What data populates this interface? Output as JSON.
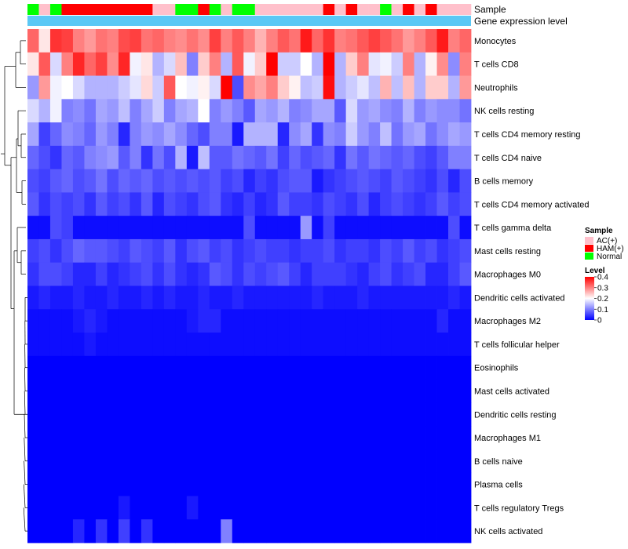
{
  "chart_data": {
    "type": "heatmap",
    "annotation_labels": {
      "sample": "Sample",
      "gene_expression": "Gene expression level"
    },
    "rows": [
      "Monocytes",
      "T cells CD8",
      "Neutrophils",
      "NK cells resting",
      "T cells CD4 memory resting",
      "T cells CD4 naive",
      "B cells memory",
      "T cells CD4 memory activated",
      "T cells gamma delta",
      "Mast cells resting",
      "Macrophages M0",
      "Dendritic cells activated",
      "Macrophages M2",
      "T cells follicular helper",
      "Eosinophils",
      "Mast cells activated",
      "Dendritic cells resting",
      "Macrophages M1",
      "B cells naive",
      "Plasma cells",
      "T cells regulatory  Tregs",
      "NK cells activated"
    ],
    "sample_groups": [
      "N",
      "A",
      "N",
      "H",
      "H",
      "H",
      "H",
      "H",
      "H",
      "H",
      "H",
      "A",
      "A",
      "N",
      "N",
      "H",
      "N",
      "A",
      "N",
      "N",
      "A",
      "A",
      "A",
      "A",
      "A",
      "A",
      "H",
      "A",
      "H",
      "A",
      "A",
      "N",
      "A",
      "H",
      "A",
      "H",
      "A",
      "A",
      "A"
    ],
    "values": [
      [
        0.32,
        0.22,
        0.36,
        0.35,
        0.3,
        0.28,
        0.31,
        0.3,
        0.34,
        0.35,
        0.31,
        0.32,
        0.3,
        0.29,
        0.31,
        0.29,
        0.35,
        0.3,
        0.33,
        0.3,
        0.26,
        0.3,
        0.33,
        0.31,
        0.38,
        0.32,
        0.36,
        0.3,
        0.31,
        0.33,
        0.35,
        0.33,
        0.31,
        0.28,
        0.3,
        0.33,
        0.38,
        0.3,
        0.32
      ],
      [
        0.22,
        0.33,
        0.17,
        0.3,
        0.37,
        0.32,
        0.35,
        0.29,
        0.37,
        0.19,
        0.22,
        0.14,
        0.17,
        0.25,
        0.1,
        0.24,
        0.3,
        0.14,
        0.33,
        0.19,
        0.24,
        0.4,
        0.16,
        0.16,
        0.2,
        0.14,
        0.41,
        0.14,
        0.24,
        0.3,
        0.18,
        0.19,
        0.16,
        0.3,
        0.14,
        0.21,
        0.29,
        0.11,
        0.3
      ],
      [
        0.12,
        0.28,
        0.19,
        0.2,
        0.17,
        0.14,
        0.14,
        0.14,
        0.16,
        0.18,
        0.23,
        0.16,
        0.33,
        0.2,
        0.19,
        0.21,
        0.17,
        0.4,
        0.06,
        0.29,
        0.27,
        0.3,
        0.24,
        0.21,
        0.15,
        0.16,
        0.39,
        0.14,
        0.16,
        0.18,
        0.15,
        0.26,
        0.15,
        0.25,
        0.14,
        0.24,
        0.24,
        0.14,
        0.28
      ],
      [
        0.17,
        0.14,
        0.19,
        0.1,
        0.11,
        0.09,
        0.13,
        0.12,
        0.15,
        0.1,
        0.13,
        0.16,
        0.1,
        0.13,
        0.14,
        0.2,
        0.1,
        0.12,
        0.1,
        0.07,
        0.13,
        0.12,
        0.14,
        0.1,
        0.11,
        0.13,
        0.13,
        0.07,
        0.17,
        0.12,
        0.13,
        0.11,
        0.1,
        0.14,
        0.1,
        0.12,
        0.11,
        0.11,
        0.09
      ],
      [
        0.13,
        0.05,
        0.08,
        0.11,
        0.1,
        0.08,
        0.12,
        0.1,
        0.03,
        0.1,
        0.12,
        0.11,
        0.13,
        0.11,
        0.08,
        0.06,
        0.1,
        0.1,
        0.02,
        0.14,
        0.14,
        0.14,
        0.03,
        0.11,
        0.13,
        0.04,
        0.11,
        0.1,
        0.16,
        0.12,
        0.1,
        0.15,
        0.09,
        0.12,
        0.13,
        0.09,
        0.11,
        0.13,
        0.12
      ],
      [
        0.08,
        0.06,
        0.04,
        0.08,
        0.07,
        0.1,
        0.11,
        0.12,
        0.07,
        0.1,
        0.04,
        0.09,
        0.06,
        0.14,
        0.02,
        0.15,
        0.07,
        0.07,
        0.09,
        0.08,
        0.07,
        0.09,
        0.05,
        0.08,
        0.06,
        0.07,
        0.08,
        0.04,
        0.09,
        0.07,
        0.09,
        0.08,
        0.07,
        0.08,
        0.06,
        0.05,
        0.07,
        0.1,
        0.1
      ],
      [
        0.06,
        0.05,
        0.07,
        0.08,
        0.06,
        0.07,
        0.09,
        0.06,
        0.08,
        0.07,
        0.08,
        0.06,
        0.07,
        0.06,
        0.07,
        0.06,
        0.07,
        0.05,
        0.06,
        0.03,
        0.05,
        0.04,
        0.06,
        0.07,
        0.07,
        0.02,
        0.04,
        0.05,
        0.06,
        0.07,
        0.06,
        0.05,
        0.07,
        0.06,
        0.05,
        0.04,
        0.06,
        0.03,
        0.06
      ],
      [
        0.07,
        0.04,
        0.06,
        0.05,
        0.06,
        0.04,
        0.07,
        0.05,
        0.06,
        0.04,
        0.07,
        0.03,
        0.06,
        0.05,
        0.04,
        0.06,
        0.07,
        0.04,
        0.03,
        0.05,
        0.03,
        0.04,
        0.07,
        0.05,
        0.05,
        0.04,
        0.06,
        0.05,
        0.04,
        0.06,
        0.03,
        0.05,
        0.06,
        0.05,
        0.04,
        0.05,
        0.07,
        0.05,
        0.06
      ],
      [
        0.01,
        0.01,
        0.06,
        0.05,
        0.01,
        0.01,
        0.01,
        0.01,
        0.01,
        0.01,
        0.01,
        0.01,
        0.01,
        0.01,
        0.01,
        0.01,
        0.01,
        0.01,
        0.01,
        0.06,
        0.01,
        0.01,
        0.01,
        0.01,
        0.12,
        0.01,
        0.05,
        0.01,
        0.01,
        0.01,
        0.01,
        0.01,
        0.01,
        0.01,
        0.01,
        0.01,
        0.01,
        0.06,
        0.01
      ],
      [
        0.05,
        0.06,
        0.04,
        0.06,
        0.08,
        0.07,
        0.07,
        0.06,
        0.05,
        0.07,
        0.06,
        0.05,
        0.07,
        0.04,
        0.06,
        0.07,
        0.05,
        0.06,
        0.04,
        0.05,
        0.06,
        0.05,
        0.05,
        0.04,
        0.05,
        0.05,
        0.06,
        0.04,
        0.05,
        0.05,
        0.04,
        0.06,
        0.05,
        0.07,
        0.05,
        0.06,
        0.04,
        0.05,
        0.06
      ],
      [
        0.04,
        0.06,
        0.06,
        0.05,
        0.03,
        0.03,
        0.05,
        0.03,
        0.04,
        0.05,
        0.06,
        0.04,
        0.06,
        0.04,
        0.03,
        0.04,
        0.07,
        0.06,
        0.04,
        0.06,
        0.05,
        0.06,
        0.07,
        0.05,
        0.03,
        0.05,
        0.05,
        0.05,
        0.04,
        0.03,
        0.05,
        0.06,
        0.04,
        0.05,
        0.06,
        0.03,
        0.03,
        0.05,
        0.07
      ],
      [
        0.02,
        0.03,
        0.02,
        0.02,
        0.03,
        0.02,
        0.02,
        0.03,
        0.02,
        0.02,
        0.03,
        0.02,
        0.03,
        0.02,
        0.02,
        0.03,
        0.02,
        0.02,
        0.03,
        0.02,
        0.02,
        0.02,
        0.02,
        0.02,
        0.02,
        0.03,
        0.02,
        0.02,
        0.02,
        0.03,
        0.02,
        0.02,
        0.02,
        0.02,
        0.02,
        0.02,
        0.02,
        0.03,
        0.02
      ],
      [
        0.01,
        0.01,
        0.01,
        0.01,
        0.02,
        0.03,
        0.02,
        0.01,
        0.01,
        0.01,
        0.01,
        0.01,
        0.01,
        0.01,
        0.02,
        0.03,
        0.03,
        0.01,
        0.01,
        0.01,
        0.01,
        0.01,
        0.01,
        0.01,
        0.01,
        0.01,
        0.01,
        0.01,
        0.01,
        0.01,
        0.01,
        0.01,
        0.01,
        0.01,
        0.01,
        0.01,
        0.03,
        0.01,
        0.01
      ],
      [
        0.01,
        0.01,
        0.01,
        0.01,
        0.01,
        0.02,
        0.01,
        0.01,
        0.01,
        0.01,
        0.01,
        0.01,
        0.01,
        0.01,
        0.01,
        0.01,
        0.01,
        0.01,
        0.01,
        0.01,
        0.01,
        0.01,
        0.01,
        0.01,
        0.01,
        0.01,
        0.01,
        0.01,
        0.01,
        0.01,
        0.01,
        0.01,
        0.01,
        0.01,
        0.01,
        0.01,
        0.01,
        0.01,
        0.01
      ],
      [
        0.0,
        0.0,
        0.0,
        0.0,
        0.0,
        0.0,
        0.0,
        0.0,
        0.0,
        0.0,
        0.0,
        0.0,
        0.0,
        0.0,
        0.0,
        0.0,
        0.0,
        0.0,
        0.0,
        0.0,
        0.0,
        0.0,
        0.0,
        0.0,
        0.0,
        0.0,
        0.0,
        0.0,
        0.0,
        0.0,
        0.0,
        0.0,
        0.0,
        0.0,
        0.0,
        0.0,
        0.0,
        0.0,
        0.0
      ],
      [
        0.0,
        0.0,
        0.0,
        0.0,
        0.0,
        0.0,
        0.0,
        0.0,
        0.0,
        0.0,
        0.0,
        0.0,
        0.0,
        0.0,
        0.0,
        0.0,
        0.0,
        0.0,
        0.0,
        0.0,
        0.0,
        0.0,
        0.0,
        0.0,
        0.0,
        0.0,
        0.0,
        0.0,
        0.0,
        0.0,
        0.0,
        0.0,
        0.0,
        0.0,
        0.0,
        0.0,
        0.0,
        0.0,
        0.0
      ],
      [
        0.0,
        0.0,
        0.0,
        0.0,
        0.0,
        0.0,
        0.0,
        0.0,
        0.0,
        0.0,
        0.0,
        0.0,
        0.0,
        0.0,
        0.0,
        0.0,
        0.0,
        0.0,
        0.0,
        0.0,
        0.0,
        0.0,
        0.0,
        0.0,
        0.0,
        0.0,
        0.0,
        0.0,
        0.0,
        0.0,
        0.0,
        0.0,
        0.0,
        0.0,
        0.0,
        0.0,
        0.0,
        0.0,
        0.0
      ],
      [
        0.0,
        0.0,
        0.0,
        0.0,
        0.0,
        0.0,
        0.0,
        0.0,
        0.0,
        0.0,
        0.0,
        0.0,
        0.0,
        0.0,
        0.0,
        0.0,
        0.0,
        0.0,
        0.0,
        0.0,
        0.0,
        0.0,
        0.0,
        0.0,
        0.0,
        0.0,
        0.0,
        0.0,
        0.0,
        0.0,
        0.0,
        0.0,
        0.0,
        0.0,
        0.0,
        0.0,
        0.0,
        0.0,
        0.0
      ],
      [
        0.0,
        0.0,
        0.0,
        0.0,
        0.0,
        0.0,
        0.0,
        0.0,
        0.0,
        0.0,
        0.0,
        0.0,
        0.0,
        0.0,
        0.0,
        0.0,
        0.0,
        0.0,
        0.0,
        0.0,
        0.0,
        0.0,
        0.0,
        0.0,
        0.0,
        0.0,
        0.0,
        0.0,
        0.0,
        0.0,
        0.0,
        0.0,
        0.0,
        0.0,
        0.0,
        0.0,
        0.0,
        0.0,
        0.0
      ],
      [
        0.0,
        0.0,
        0.0,
        0.0,
        0.0,
        0.0,
        0.0,
        0.0,
        0.0,
        0.0,
        0.0,
        0.0,
        0.0,
        0.0,
        0.0,
        0.0,
        0.0,
        0.0,
        0.0,
        0.0,
        0.0,
        0.0,
        0.0,
        0.0,
        0.0,
        0.0,
        0.0,
        0.0,
        0.0,
        0.0,
        0.0,
        0.0,
        0.0,
        0.0,
        0.0,
        0.0,
        0.0,
        0.0,
        0.0
      ],
      [
        0.0,
        0.0,
        0.0,
        0.0,
        0.0,
        0.0,
        0.0,
        0.0,
        0.02,
        0.0,
        0.0,
        0.0,
        0.0,
        0.0,
        0.02,
        0.0,
        0.0,
        0.0,
        0.0,
        0.0,
        0.0,
        0.0,
        0.0,
        0.0,
        0.0,
        0.0,
        0.0,
        0.0,
        0.0,
        0.0,
        0.0,
        0.0,
        0.0,
        0.0,
        0.0,
        0.0,
        0.0,
        0.0,
        0.0
      ],
      [
        0.0,
        0.0,
        0.0,
        0.0,
        0.03,
        0.0,
        0.04,
        0.0,
        0.05,
        0.0,
        0.04,
        0.0,
        0.0,
        0.0,
        0.0,
        0.0,
        0.0,
        0.1,
        0.0,
        0.0,
        0.0,
        0.0,
        0.0,
        0.0,
        0.0,
        0.0,
        0.0,
        0.0,
        0.0,
        0.0,
        0.0,
        0.0,
        0.0,
        0.0,
        0.0,
        0.0,
        0.0,
        0.0,
        0.0
      ]
    ],
    "color_scale": {
      "min": 0,
      "max": 0.4,
      "low": "#0000FF",
      "mid": "#FFFFFF",
      "high": "#FF0000",
      "mid_value": 0.2
    },
    "legend": {
      "sample_title": "Sample",
      "groups": [
        {
          "code": "A",
          "label": "AC(+)",
          "color": "#FFC0CB"
        },
        {
          "code": "H",
          "label": "HAM(+)",
          "color": "#FF0000"
        },
        {
          "code": "N",
          "label": "Normal",
          "color": "#00FF00"
        }
      ],
      "level_title": "Level",
      "ticks": [
        "0.4",
        "0.3",
        "0.2",
        "0.1",
        "0"
      ],
      "tick_values": [
        0.4,
        0.3,
        0.2,
        0.1,
        0
      ]
    },
    "gene_expression_color": "#5BC8F5"
  }
}
